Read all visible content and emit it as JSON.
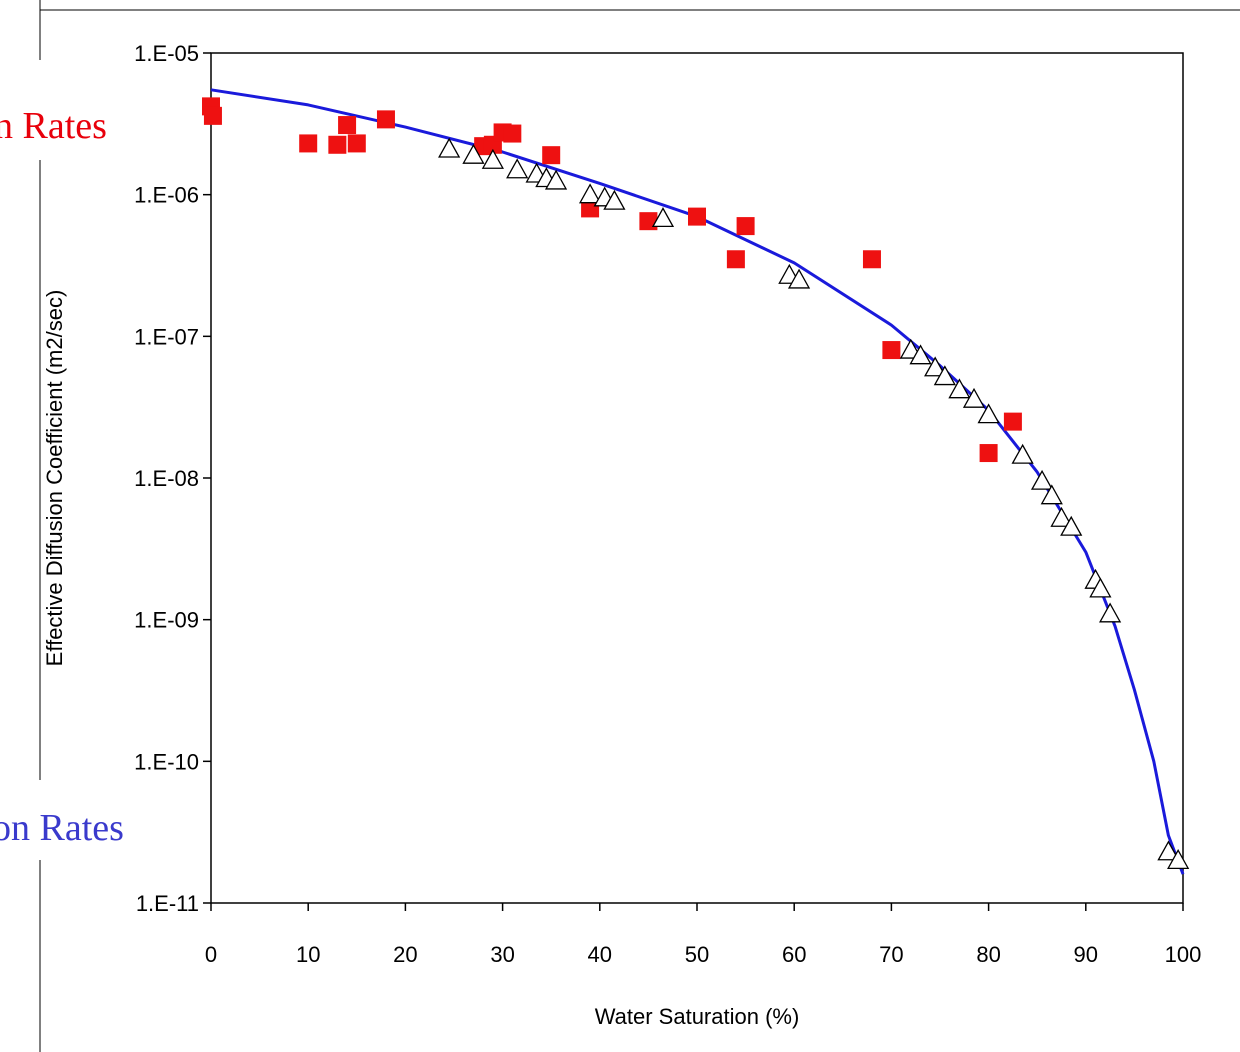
{
  "side_labels": {
    "top_fragment": "n Rates",
    "top_color": "#e8000b",
    "bottom_fragment": "on Rates",
    "bottom_color": "#3a3acc"
  },
  "chart_data": {
    "type": "scatter",
    "title": "",
    "xlabel": "Water Saturation (%)",
    "ylabel": "Effective Diffusion Coefficient (m2/sec)",
    "xlim": [
      0,
      100
    ],
    "ylim": [
      1e-11,
      1e-05
    ],
    "y_scale": "log",
    "grid": false,
    "x_ticks": [
      0,
      10,
      20,
      30,
      40,
      50,
      60,
      70,
      80,
      90,
      100
    ],
    "x_tick_labels": [
      "0",
      "10",
      "20",
      "30",
      "40",
      "50",
      "60",
      "70",
      "80",
      "90",
      "100"
    ],
    "y_ticks": [
      1e-05,
      1e-06,
      1e-07,
      1e-08,
      1e-09,
      1e-10,
      1e-11
    ],
    "y_tick_labels": [
      "1.E-05",
      "1.E-06",
      "1.E-07",
      "1.E-08",
      "1.E-09",
      "1.E-10",
      "1.E-11"
    ],
    "colors": {
      "squares": "#ee1111",
      "triangles_fill": "#ffffff",
      "triangles_stroke": "#000000",
      "curve": "#1a1adb"
    },
    "series": [
      {
        "marker": "square",
        "points": [
          [
            0,
            4.2e-06
          ],
          [
            0.2,
            3.6e-06
          ],
          [
            10,
            2.3e-06
          ],
          [
            13,
            2.25e-06
          ],
          [
            14,
            3.1e-06
          ],
          [
            15,
            2.3e-06
          ],
          [
            18,
            3.4e-06
          ],
          [
            28,
            2.2e-06
          ],
          [
            29,
            2.25e-06
          ],
          [
            30,
            2.75e-06
          ],
          [
            31,
            2.7e-06
          ],
          [
            35,
            1.9e-06
          ],
          [
            39,
            8e-07
          ],
          [
            45,
            6.5e-07
          ],
          [
            50,
            7e-07
          ],
          [
            54,
            3.5e-07
          ],
          [
            55,
            6e-07
          ],
          [
            68,
            3.5e-07
          ],
          [
            70,
            8e-08
          ],
          [
            80,
            1.5e-08
          ],
          [
            82.5,
            2.5e-08
          ]
        ]
      },
      {
        "marker": "triangle",
        "points": [
          [
            24.5,
            2.1e-06
          ],
          [
            27,
            1.9e-06
          ],
          [
            29,
            1.75e-06
          ],
          [
            31.5,
            1.5e-06
          ],
          [
            33.5,
            1.4e-06
          ],
          [
            34.5,
            1.3e-06
          ],
          [
            35.5,
            1.25e-06
          ],
          [
            39,
            1e-06
          ],
          [
            40.5,
            9.5e-07
          ],
          [
            41.5,
            9e-07
          ],
          [
            46.5,
            6.8e-07
          ],
          [
            59.5,
            2.7e-07
          ],
          [
            60.5,
            2.5e-07
          ],
          [
            72,
            8e-08
          ],
          [
            73,
            7.3e-08
          ],
          [
            74.5,
            6e-08
          ],
          [
            75.5,
            5.2e-08
          ],
          [
            77,
            4.2e-08
          ],
          [
            78.5,
            3.6e-08
          ],
          [
            80,
            2.8e-08
          ],
          [
            83.5,
            1.45e-08
          ],
          [
            85.5,
            9.5e-09
          ],
          [
            86.5,
            7.5e-09
          ],
          [
            87.5,
            5.2e-09
          ],
          [
            88.5,
            4.5e-09
          ],
          [
            91,
            1.9e-09
          ],
          [
            91.5,
            1.65e-09
          ],
          [
            92.5,
            1.1e-09
          ],
          [
            98.5,
            2.3e-11
          ],
          [
            99.5,
            2e-11
          ]
        ]
      },
      {
        "marker": "line",
        "points": [
          [
            0,
            5.5e-06
          ],
          [
            10,
            4.3e-06
          ],
          [
            20,
            3e-06
          ],
          [
            30,
            2e-06
          ],
          [
            40,
            1.2e-06
          ],
          [
            50,
            7e-07
          ],
          [
            60,
            3.3e-07
          ],
          [
            70,
            1.2e-07
          ],
          [
            75,
            6.2e-08
          ],
          [
            80,
            3e-08
          ],
          [
            85,
            1.1e-08
          ],
          [
            90,
            3e-09
          ],
          [
            93,
            9e-10
          ],
          [
            95,
            3.2e-10
          ],
          [
            97,
            1e-10
          ],
          [
            98.5,
            3e-11
          ],
          [
            100,
            1.6e-11
          ]
        ]
      }
    ]
  }
}
